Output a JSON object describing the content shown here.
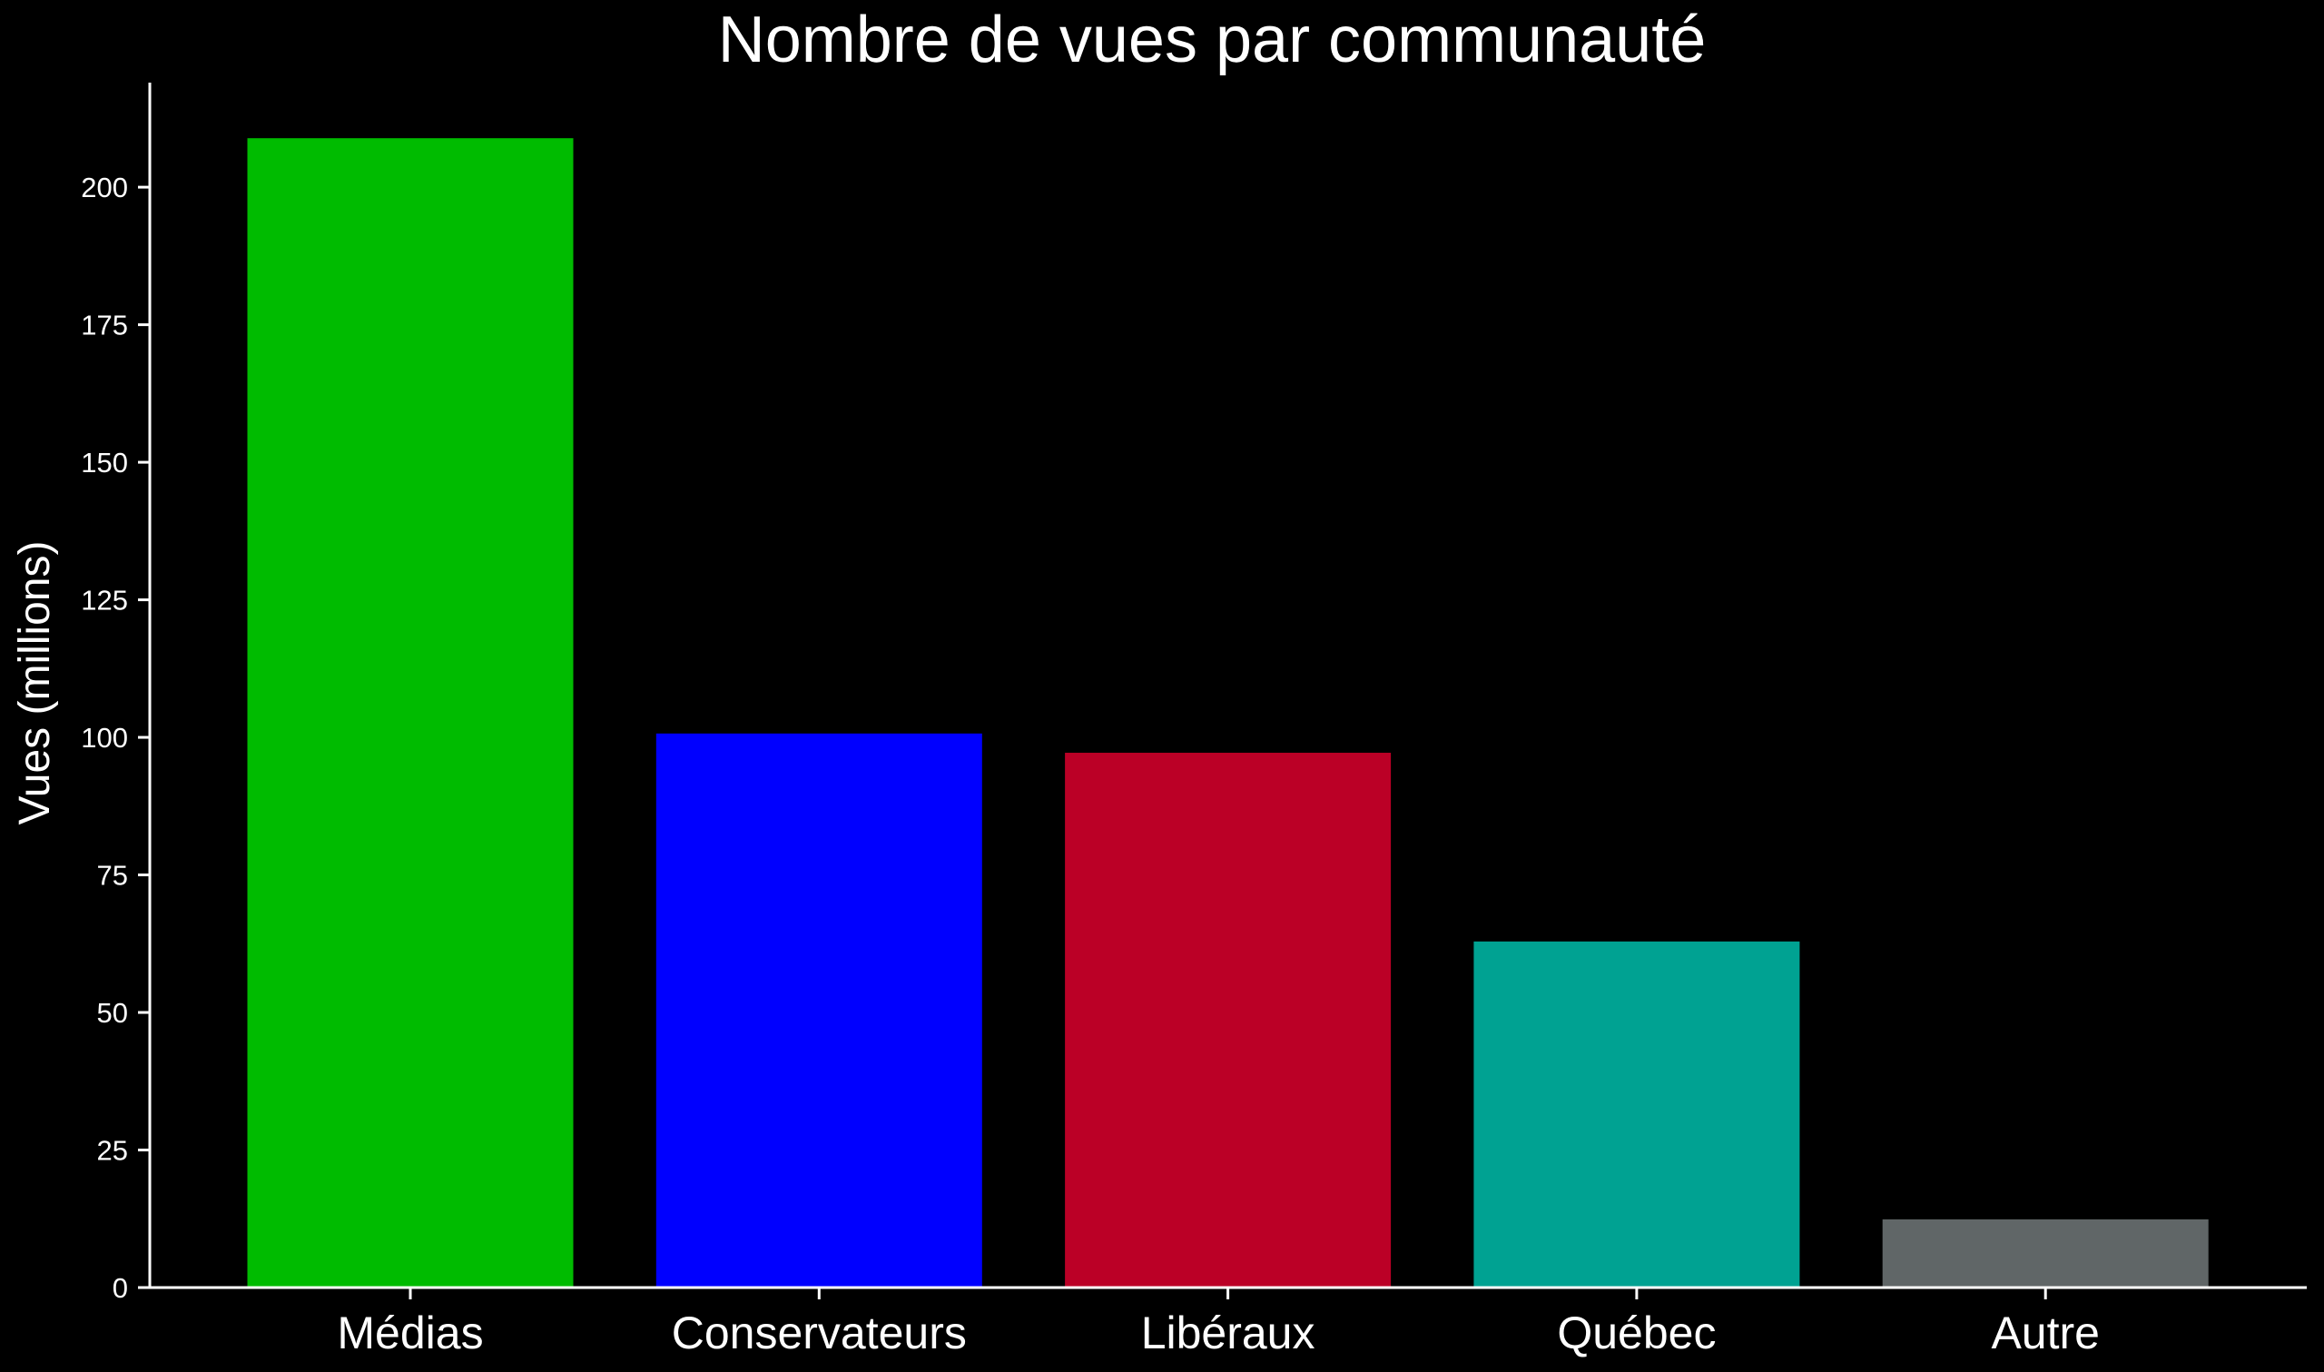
{
  "chart_data": {
    "type": "bar",
    "title": "Nombre de vues par communauté",
    "xlabel": "",
    "ylabel": "Vues (millions)",
    "categories": [
      "Médias",
      "Conservateurs",
      "Libéraux",
      "Québec",
      "Autre"
    ],
    "values": [
      208.9,
      100.7,
      97.2,
      62.9,
      12.4
    ],
    "colors": [
      "#00bb00",
      "#0000ff",
      "#bb0026",
      "#00a292",
      "#606667"
    ],
    "ylim": [
      0,
      219
    ],
    "yticks": [
      0,
      25,
      50,
      75,
      100,
      125,
      150,
      175,
      200
    ],
    "grid": false,
    "background": "#000000"
  }
}
